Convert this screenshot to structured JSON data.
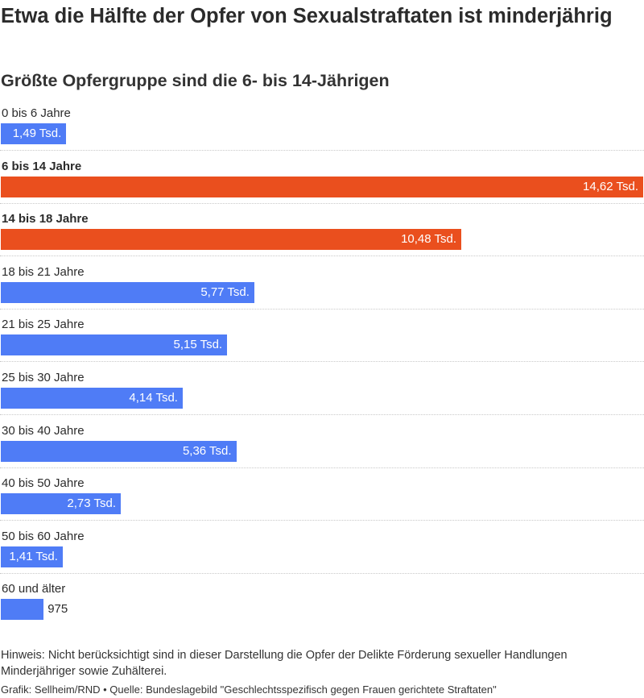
{
  "title": "Etwa die Hälfte der Opfer von Sexualstraftaten ist minderjährig",
  "subtitle": "Größte Opfergruppe sind die 6- bis 14-Jährigen",
  "note": "Hinweis: Nicht berücksichtigt sind in dieser Darstellung die Opfer der Delikte Förderung sexueller Handlungen Minderjähriger sowie Zuhälterei.",
  "credit": "Grafik: Sellheim/RND • Quelle: Bundeslagebild \"Geschlechtsspezifisch gegen Frauen gerichtete Straftaten\"",
  "colors": {
    "default": "#4f7cf6",
    "highlight": "#ea4f1e"
  },
  "chart_data": {
    "type": "bar",
    "orientation": "horizontal",
    "xlim": [
      0,
      14620
    ],
    "grid": false,
    "categories": [
      "0 bis 6 Jahre",
      "6 bis 14 Jahre",
      "14 bis 18 Jahre",
      "18 bis 21 Jahre",
      "21 bis 25 Jahre",
      "25 bis 30 Jahre",
      "30 bis 40 Jahre",
      "40 bis 50 Jahre",
      "50 bis 60 Jahre",
      "60 und älter"
    ],
    "values": [
      1490,
      14620,
      10480,
      5770,
      5150,
      4140,
      5360,
      2730,
      1410,
      975
    ],
    "value_labels": [
      "1,49 Tsd.",
      "14,62 Tsd.",
      "10,48 Tsd.",
      "5,77 Tsd.",
      "5,15 Tsd.",
      "4,14 Tsd.",
      "5,36 Tsd.",
      "2,73 Tsd.",
      "1,41 Tsd.",
      "975"
    ],
    "highlighted": [
      "6 bis 14 Jahre",
      "14 bis 18 Jahre"
    ]
  }
}
